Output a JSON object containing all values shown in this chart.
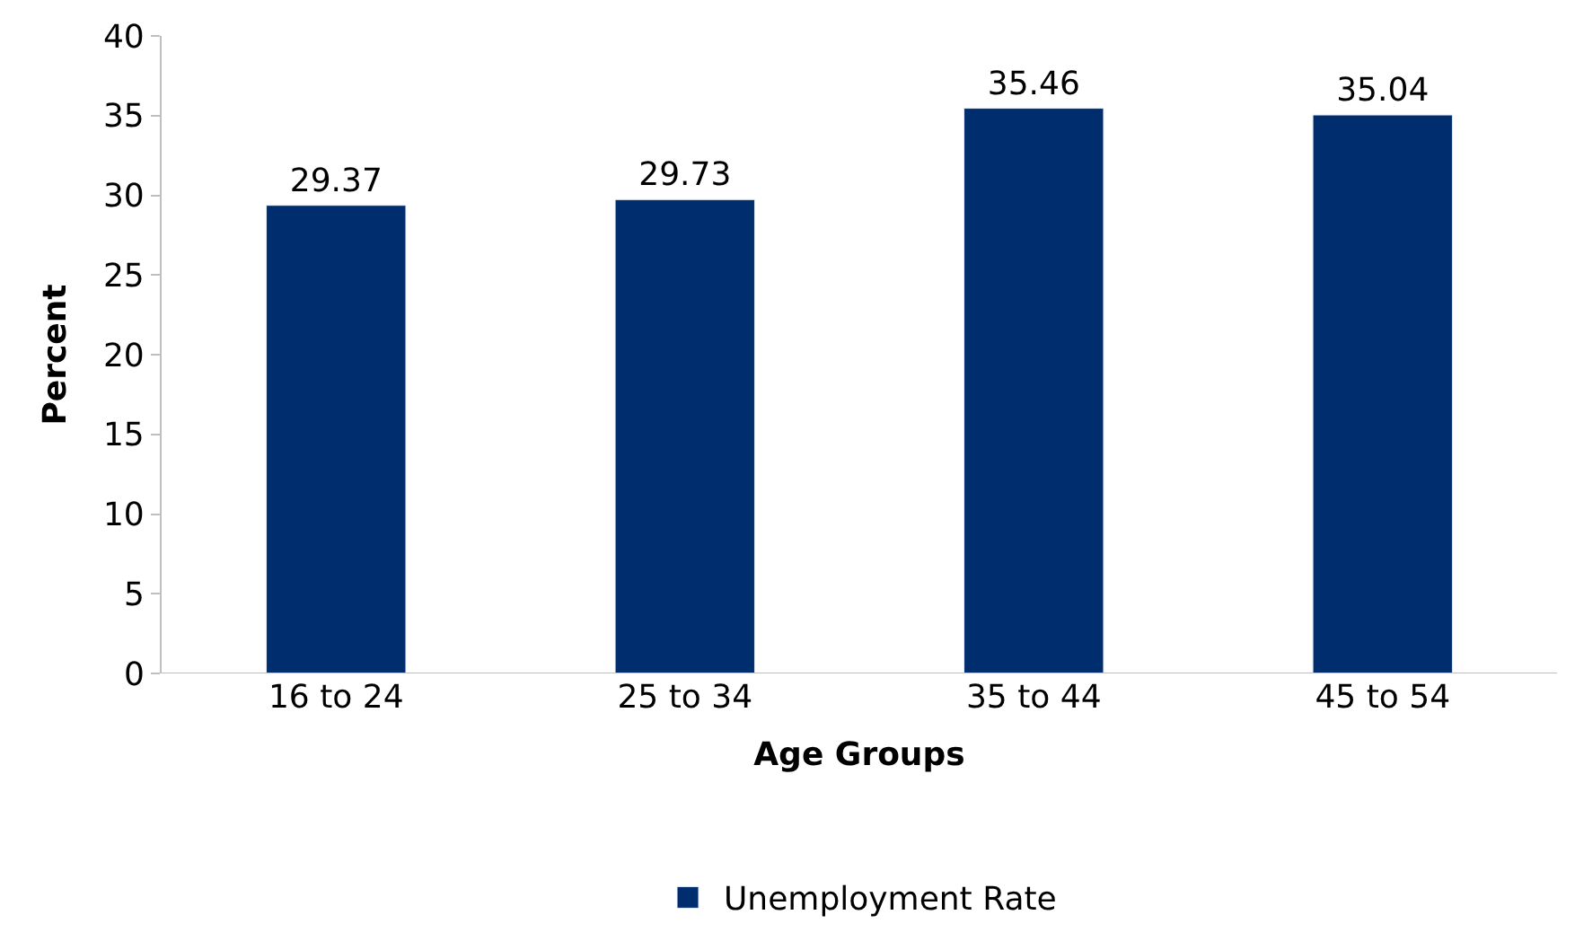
{
  "chart_data": {
    "type": "bar",
    "xlabel": "Age Groups",
    "ylabel": "Percent",
    "categories": [
      "16 to 24",
      "25 to 34",
      "35 to 44",
      "45 to 54"
    ],
    "series": [
      {
        "name": "Unemployment Rate",
        "color": "#002d6e",
        "values": [
          29.37,
          29.73,
          35.46,
          35.04
        ]
      }
    ],
    "data_labels": true,
    "ylim": [
      0,
      40
    ],
    "yticks": [
      0,
      5,
      10,
      15,
      20,
      25,
      30,
      35,
      40
    ],
    "legend": "bottom"
  }
}
